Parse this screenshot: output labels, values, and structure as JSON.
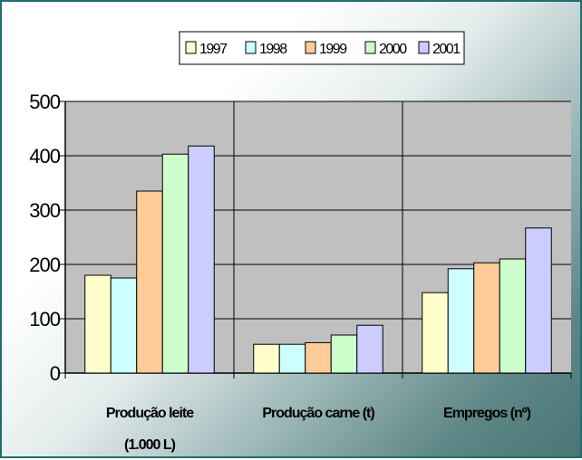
{
  "chart_data": {
    "type": "bar",
    "categories": [
      [
        "Produção leite",
        "(1.000 L)"
      ],
      [
        "Produção carne (t)"
      ],
      [
        "Empregos (nº)"
      ]
    ],
    "series": [
      {
        "name": "1997",
        "color": "#ffffcc",
        "values": [
          180,
          53,
          148
        ]
      },
      {
        "name": "1998",
        "color": "#ccffff",
        "values": [
          175,
          53,
          192
        ]
      },
      {
        "name": "1999",
        "color": "#ffcc99",
        "values": [
          335,
          56,
          203
        ]
      },
      {
        "name": "2000",
        "color": "#ccffcc",
        "values": [
          403,
          70,
          210
        ]
      },
      {
        "name": "2001",
        "color": "#ccccff",
        "values": [
          418,
          88,
          267
        ]
      }
    ],
    "ylim": [
      0,
      500
    ],
    "yticks": [
      0,
      100,
      200,
      300,
      400,
      500
    ],
    "grid": true,
    "legend_position": "top"
  }
}
